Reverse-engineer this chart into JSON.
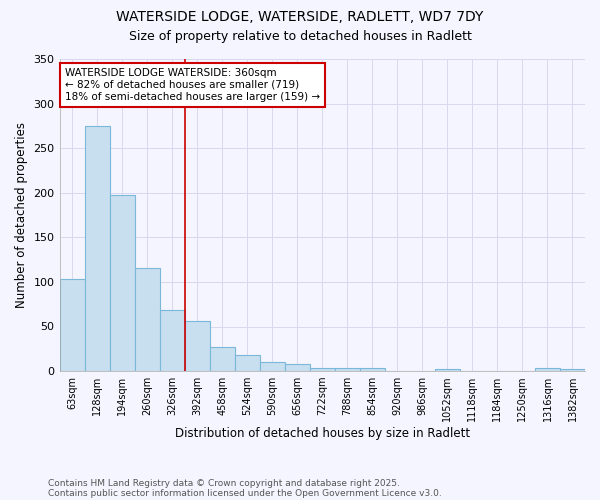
{
  "title_line1": "WATERSIDE LODGE, WATERSIDE, RADLETT, WD7 7DY",
  "title_line2": "Size of property relative to detached houses in Radlett",
  "xlabel": "Distribution of detached houses by size in Radlett",
  "ylabel": "Number of detached properties",
  "categories": [
    "63sqm",
    "128sqm",
    "194sqm",
    "260sqm",
    "326sqm",
    "392sqm",
    "458sqm",
    "524sqm",
    "590sqm",
    "656sqm",
    "722sqm",
    "788sqm",
    "854sqm",
    "920sqm",
    "986sqm",
    "1052sqm",
    "1118sqm",
    "1184sqm",
    "1250sqm",
    "1316sqm",
    "1382sqm"
  ],
  "values": [
    103,
    275,
    198,
    116,
    69,
    56,
    27,
    18,
    10,
    8,
    4,
    4,
    4,
    0,
    0,
    2,
    0,
    0,
    0,
    4,
    2
  ],
  "bar_color": "#c8dff0",
  "bar_edge_color": "#7ab8d9",
  "marker_line_index": 4.5,
  "annotation_text_line1": "WATERSIDE LODGE WATERSIDE: 360sqm",
  "annotation_text_line2": "← 82% of detached houses are smaller (719)",
  "annotation_text_line3": "18% of semi-detached houses are larger (159) →",
  "annotation_box_color": "white",
  "annotation_box_edge_color": "#cc0000",
  "marker_line_color": "#cc0000",
  "ylim": [
    0,
    350
  ],
  "yticks": [
    0,
    50,
    100,
    150,
    200,
    250,
    300,
    350
  ],
  "footer_line1": "Contains HM Land Registry data © Crown copyright and database right 2025.",
  "footer_line2": "Contains public sector information licensed under the Open Government Licence v3.0.",
  "bg_color": "#f5f5ff",
  "grid_color": "#d8d8ee"
}
